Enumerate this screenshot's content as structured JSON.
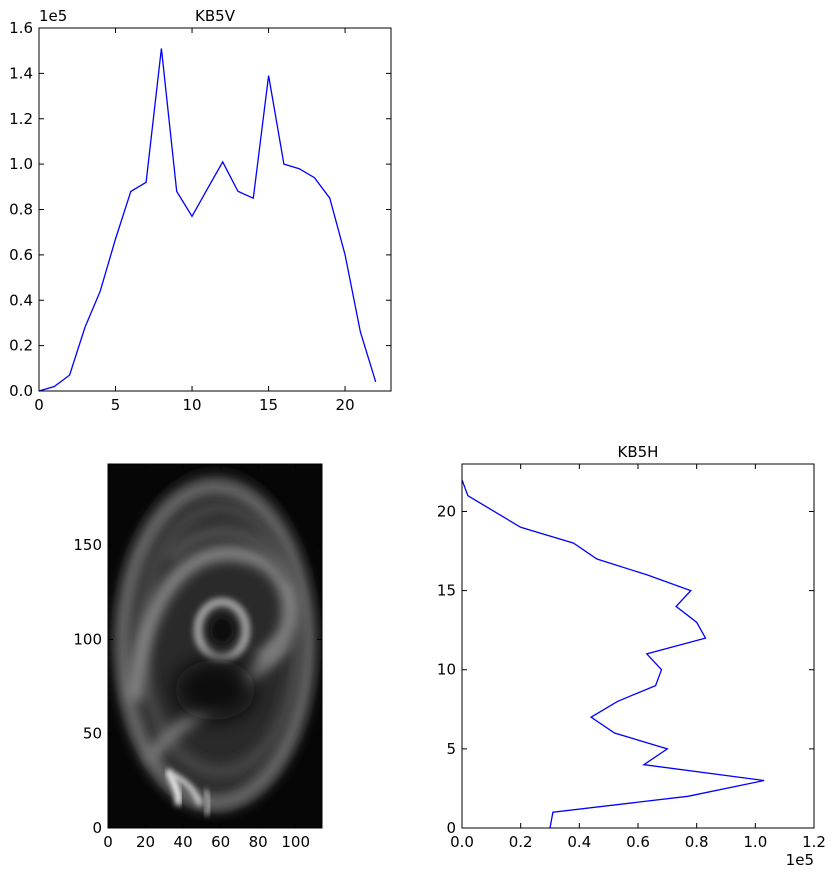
{
  "chart_data": [
    {
      "type": "line",
      "title": "KB5V",
      "xlabel": "",
      "ylabel": "",
      "x": [
        0,
        1,
        2,
        3,
        4,
        5,
        6,
        7,
        8,
        9,
        10,
        11,
        12,
        13,
        14,
        15,
        16,
        17,
        18,
        19,
        20,
        21,
        22
      ],
      "values": [
        0.0,
        0.02,
        0.07,
        0.28,
        0.44,
        0.67,
        0.88,
        0.92,
        1.51,
        0.88,
        0.77,
        0.89,
        1.01,
        0.88,
        0.85,
        1.39,
        1.0,
        0.98,
        0.94,
        0.85,
        0.6,
        0.26,
        0.04
      ],
      "xlim": [
        0,
        23
      ],
      "ylim": [
        0.0,
        1.6
      ],
      "xticks": [
        "0",
        "5",
        "10",
        "15",
        "20"
      ],
      "yticks": [
        "0.0",
        "0.2",
        "0.4",
        "0.6",
        "0.8",
        "1.0",
        "1.2",
        "1.4",
        "1.6"
      ],
      "y_offset_label": "1e5",
      "grid": false
    },
    {
      "type": "heatmap",
      "title": "",
      "colormap": "gray",
      "xlim": [
        0,
        114
      ],
      "ylim": [
        0,
        193
      ],
      "xticks": [
        "0",
        "20",
        "40",
        "60",
        "80",
        "100"
      ],
      "yticks": [
        "0",
        "50",
        "100",
        "150"
      ]
    },
    {
      "type": "line",
      "title": "KB5H",
      "xlabel": "",
      "ylabel": "",
      "x": [
        0.3,
        0.31,
        0.77,
        1.03,
        0.62,
        0.7,
        0.52,
        0.44,
        0.53,
        0.66,
        0.68,
        0.63,
        0.83,
        0.8,
        0.73,
        0.78,
        0.63,
        0.46,
        0.38,
        0.2,
        0.02,
        0.0
      ],
      "values": [
        0,
        1,
        2,
        3,
        4,
        5,
        6,
        7,
        8,
        9,
        10,
        11,
        12,
        13,
        14,
        15,
        16,
        17,
        18,
        19,
        21,
        22
      ],
      "xlim": [
        0.0,
        1.2
      ],
      "ylim": [
        0,
        23
      ],
      "xticks": [
        "0.0",
        "0.2",
        "0.4",
        "0.6",
        "0.8",
        "1.0",
        "1.2"
      ],
      "yticks": [
        "0",
        "5",
        "10",
        "15",
        "20"
      ],
      "x_offset_label": "1e5",
      "grid": false
    }
  ]
}
